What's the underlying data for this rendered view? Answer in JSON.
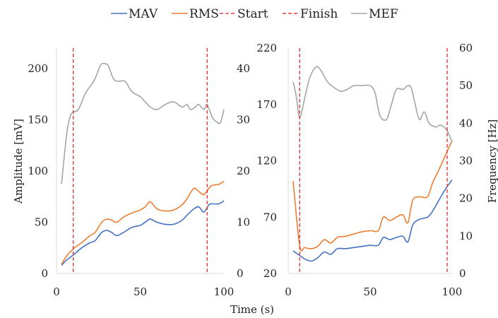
{
  "legend": {
    "items": [
      {
        "label": "MAV",
        "color": "#4472C4",
        "dash": false
      },
      {
        "label": "RMS",
        "color": "#ED7D31",
        "dash": false
      },
      {
        "label": "Start",
        "color": "#E03C3C",
        "dash": true
      },
      {
        "label": "Finish",
        "color": "#E03C3C",
        "dash": true
      },
      {
        "label": "MEF",
        "color": "#A5A5A5",
        "dash": false
      }
    ]
  },
  "xlabel": "Time (s)",
  "chart_data": [
    {
      "type": "line",
      "ylabel_left": "Amplitude [mV]",
      "ylabel_right": "",
      "xlim": [
        0,
        100
      ],
      "ylim_left": [
        0,
        220
      ],
      "ylim_right": [
        0,
        44
      ],
      "x_ticks": [
        0,
        50,
        100
      ],
      "y_left_ticks": [
        0,
        50,
        100,
        150,
        200
      ],
      "y_right_ticks": [
        0,
        10,
        20,
        30,
        40
      ],
      "start": 10,
      "finish": 90,
      "series": [
        {
          "name": "MAV",
          "axis": "left",
          "color": "#4472C4",
          "x": [
            3,
            6,
            10,
            15,
            20,
            23,
            27,
            30,
            33,
            36,
            40,
            45,
            50,
            53,
            56,
            60,
            65,
            70,
            75,
            78,
            82,
            85,
            88,
            91,
            93,
            97,
            100
          ],
          "y": [
            8,
            13,
            18,
            25,
            30,
            32,
            40,
            42,
            40,
            37,
            40,
            45,
            47,
            50,
            53,
            50,
            48,
            48,
            52,
            57,
            63,
            65,
            60,
            67,
            68,
            68,
            71
          ]
        },
        {
          "name": "RMS",
          "axis": "left",
          "color": "#ED7D31",
          "x": [
            3,
            6,
            10,
            15,
            20,
            23,
            27,
            30,
            33,
            36,
            40,
            45,
            50,
            53,
            56,
            60,
            65,
            70,
            75,
            78,
            82,
            85,
            88,
            91,
            93,
            97,
            100
          ],
          "y": [
            9,
            17,
            24,
            30,
            37,
            40,
            50,
            53,
            52,
            50,
            55,
            59,
            62,
            65,
            70,
            63,
            61,
            62,
            67,
            73,
            83,
            80,
            77,
            83,
            86,
            87,
            90
          ]
        },
        {
          "name": "MEF",
          "axis": "right",
          "color": "#A5A5A5",
          "x": [
            3,
            6,
            8,
            10,
            13,
            17,
            20,
            23,
            26,
            28,
            31,
            34,
            37,
            41,
            45,
            50,
            53,
            56,
            60,
            65,
            70,
            75,
            78,
            80,
            83,
            85,
            88,
            90,
            93,
            96,
            98,
            100
          ],
          "y": [
            17.5,
            27,
            30.5,
            31.5,
            32,
            35,
            36.5,
            38,
            40.5,
            41,
            40.5,
            38,
            37.5,
            37.5,
            35.5,
            34.5,
            33.5,
            32.5,
            32,
            33,
            33.5,
            32.5,
            33,
            32,
            32.5,
            33,
            32,
            33,
            30.5,
            29.5,
            29.5,
            32
          ]
        }
      ]
    },
    {
      "type": "line",
      "ylabel_left": "",
      "ylabel_right": "Frequency [Hz]",
      "xlim": [
        0,
        100
      ],
      "ylim_left": [
        20,
        220
      ],
      "ylim_right": [
        0,
        60
      ],
      "x_ticks": [
        0,
        50,
        100
      ],
      "y_left_ticks": [
        20,
        70,
        120,
        170,
        220
      ],
      "y_right_ticks": [
        0,
        10,
        20,
        30,
        40,
        50,
        60
      ],
      "start": 7,
      "finish": 97,
      "series": [
        {
          "name": "MAV",
          "axis": "left",
          "color": "#4472C4",
          "x": [
            3,
            7,
            10,
            14,
            18,
            22,
            26,
            30,
            35,
            40,
            45,
            50,
            55,
            58,
            62,
            66,
            70,
            73,
            76,
            80,
            85,
            88,
            92,
            96,
            100
          ],
          "y": [
            40,
            36,
            33,
            31,
            34,
            39,
            37,
            42,
            42,
            43,
            44,
            45,
            45,
            52,
            50,
            52,
            53,
            48,
            63,
            68,
            70,
            75,
            85,
            95,
            103
          ]
        },
        {
          "name": "RMS",
          "axis": "left",
          "color": "#ED7D31",
          "x": [
            3,
            7,
            10,
            14,
            18,
            22,
            26,
            30,
            35,
            40,
            45,
            50,
            55,
            58,
            62,
            66,
            70,
            73,
            76,
            80,
            85,
            88,
            92,
            96,
            100
          ],
          "y": [
            102,
            45,
            43,
            42,
            44,
            50,
            47,
            52,
            53,
            55,
            57,
            58,
            58,
            70,
            67,
            70,
            72,
            65,
            85,
            88,
            88,
            100,
            112,
            125,
            138
          ]
        },
        {
          "name": "MEF",
          "axis": "right",
          "color": "#A5A5A5",
          "x": [
            3,
            5,
            7,
            10,
            13,
            17,
            20,
            24,
            28,
            32,
            36,
            40,
            45,
            50,
            53,
            56,
            60,
            63,
            66,
            70,
            73,
            75,
            77,
            80,
            83,
            86,
            90,
            93,
            97,
            100
          ],
          "y": [
            51,
            47,
            41.5,
            46.5,
            52,
            55,
            54,
            51,
            49.5,
            48.5,
            49,
            50,
            50,
            50,
            48,
            42,
            41,
            45,
            49,
            49,
            50,
            49.5,
            46,
            41,
            43,
            40,
            39,
            39.5,
            38,
            35
          ]
        }
      ]
    }
  ]
}
